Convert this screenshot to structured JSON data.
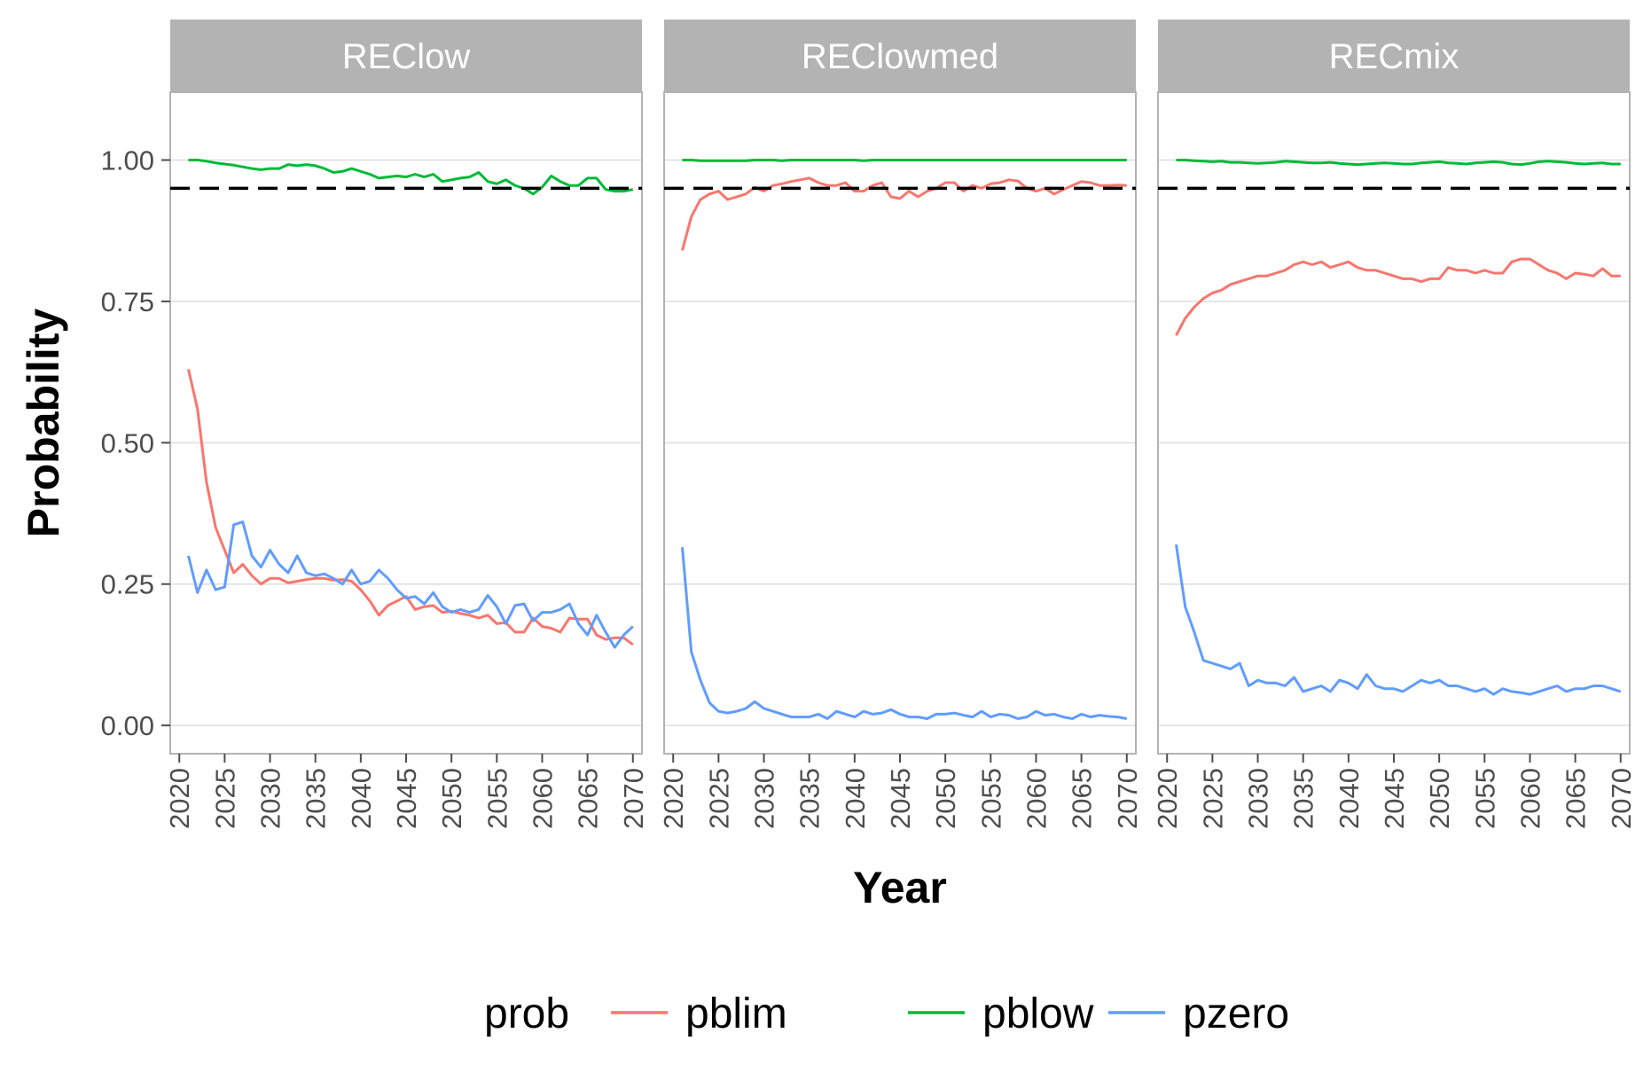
{
  "chart_data": {
    "type": "line",
    "facets": [
      "REClow",
      "REClowmed",
      "RECmix"
    ],
    "xlabel": "Year",
    "ylabel": "Probability",
    "xlim": [
      2019,
      2071
    ],
    "ylim": [
      -0.05,
      1.12
    ],
    "x_ticks": [
      2020,
      2025,
      2030,
      2035,
      2040,
      2045,
      2050,
      2055,
      2060,
      2065,
      2070
    ],
    "y_ticks": [
      0.0,
      0.25,
      0.5,
      0.75,
      1.0
    ],
    "y_tick_labels": [
      "0.00",
      "0.25",
      "0.50",
      "0.75",
      "1.00"
    ],
    "reference_line": {
      "y": 0.95,
      "style": "dashed",
      "color": "#000000"
    },
    "legend": {
      "title": "prob",
      "position": "bottom"
    },
    "grid": true,
    "x": [
      2021,
      2022,
      2023,
      2024,
      2025,
      2026,
      2027,
      2028,
      2029,
      2030,
      2031,
      2032,
      2033,
      2034,
      2035,
      2036,
      2037,
      2038,
      2039,
      2040,
      2041,
      2042,
      2043,
      2044,
      2045,
      2046,
      2047,
      2048,
      2049,
      2050,
      2051,
      2052,
      2053,
      2054,
      2055,
      2056,
      2057,
      2058,
      2059,
      2060,
      2061,
      2062,
      2063,
      2064,
      2065,
      2066,
      2067,
      2068,
      2069,
      2070
    ],
    "series_meta": [
      {
        "name": "pblim",
        "color": "#F8766D"
      },
      {
        "name": "pblow",
        "color": "#00BA38"
      },
      {
        "name": "pzero",
        "color": "#619CFF"
      }
    ],
    "panels": [
      {
        "facet": "REClow",
        "series": [
          {
            "name": "pblim",
            "values": [
              0.63,
              0.56,
              0.43,
              0.35,
              0.31,
              0.27,
              0.285,
              0.265,
              0.25,
              0.26,
              0.26,
              0.252,
              0.255,
              0.258,
              0.26,
              0.26,
              0.257,
              0.258,
              0.255,
              0.24,
              0.22,
              0.195,
              0.212,
              0.22,
              0.228,
              0.205,
              0.21,
              0.212,
              0.2,
              0.202,
              0.198,
              0.195,
              0.19,
              0.195,
              0.18,
              0.182,
              0.165,
              0.165,
              0.19,
              0.175,
              0.172,
              0.165,
              0.19,
              0.188,
              0.188,
              0.16,
              0.152,
              0.155,
              0.155,
              0.143
            ]
          },
          {
            "name": "pblow",
            "values": [
              1.0,
              1.0,
              0.998,
              0.995,
              0.993,
              0.991,
              0.988,
              0.985,
              0.983,
              0.985,
              0.985,
              0.992,
              0.99,
              0.992,
              0.99,
              0.985,
              0.978,
              0.98,
              0.985,
              0.98,
              0.975,
              0.968,
              0.97,
              0.972,
              0.97,
              0.975,
              0.97,
              0.975,
              0.962,
              0.965,
              0.968,
              0.97,
              0.978,
              0.962,
              0.958,
              0.965,
              0.955,
              0.95,
              0.94,
              0.952,
              0.972,
              0.962,
              0.955,
              0.955,
              0.968,
              0.968,
              0.948,
              0.945,
              0.945,
              0.948
            ]
          },
          {
            "name": "pzero",
            "values": [
              0.3,
              0.235,
              0.275,
              0.24,
              0.245,
              0.355,
              0.36,
              0.3,
              0.28,
              0.31,
              0.285,
              0.27,
              0.3,
              0.27,
              0.265,
              0.268,
              0.26,
              0.25,
              0.275,
              0.25,
              0.255,
              0.275,
              0.26,
              0.24,
              0.225,
              0.228,
              0.215,
              0.235,
              0.21,
              0.2,
              0.205,
              0.2,
              0.205,
              0.23,
              0.21,
              0.18,
              0.212,
              0.215,
              0.185,
              0.2,
              0.2,
              0.205,
              0.215,
              0.18,
              0.16,
              0.195,
              0.165,
              0.138,
              0.16,
              0.175
            ]
          }
        ]
      },
      {
        "facet": "REClowmed",
        "series": [
          {
            "name": "pblim",
            "values": [
              0.84,
              0.9,
              0.93,
              0.94,
              0.945,
              0.93,
              0.935,
              0.94,
              0.952,
              0.945,
              0.955,
              0.958,
              0.962,
              0.965,
              0.968,
              0.96,
              0.955,
              0.955,
              0.96,
              0.945,
              0.945,
              0.955,
              0.96,
              0.935,
              0.932,
              0.945,
              0.935,
              0.945,
              0.95,
              0.96,
              0.96,
              0.945,
              0.955,
              0.95,
              0.958,
              0.96,
              0.965,
              0.963,
              0.95,
              0.945,
              0.95,
              0.94,
              0.948,
              0.955,
              0.962,
              0.96,
              0.955,
              0.955,
              0.956,
              0.955
            ]
          },
          {
            "name": "pblow",
            "values": [
              1.0,
              1.0,
              0.999,
              0.999,
              0.999,
              0.999,
              0.999,
              0.999,
              1.0,
              1.0,
              1.0,
              0.999,
              1.0,
              1.0,
              1.0,
              1.0,
              1.0,
              1.0,
              1.0,
              1.0,
              0.999,
              1.0,
              1.0,
              1.0,
              1.0,
              1.0,
              1.0,
              1.0,
              1.0,
              1.0,
              1.0,
              1.0,
              1.0,
              1.0,
              1.0,
              1.0,
              1.0,
              1.0,
              1.0,
              1.0,
              1.0,
              1.0,
              1.0,
              1.0,
              1.0,
              1.0,
              1.0,
              1.0,
              1.0,
              1.0
            ]
          },
          {
            "name": "pzero",
            "values": [
              0.315,
              0.13,
              0.08,
              0.04,
              0.025,
              0.022,
              0.025,
              0.03,
              0.042,
              0.03,
              0.025,
              0.02,
              0.015,
              0.015,
              0.015,
              0.02,
              0.012,
              0.025,
              0.02,
              0.015,
              0.025,
              0.02,
              0.022,
              0.028,
              0.02,
              0.015,
              0.015,
              0.012,
              0.02,
              0.02,
              0.022,
              0.018,
              0.015,
              0.025,
              0.015,
              0.02,
              0.018,
              0.012,
              0.015,
              0.025,
              0.018,
              0.02,
              0.015,
              0.012,
              0.02,
              0.015,
              0.018,
              0.016,
              0.015,
              0.012
            ]
          }
        ]
      },
      {
        "facet": "RECmix",
        "series": [
          {
            "name": "pblim",
            "values": [
              0.69,
              0.72,
              0.74,
              0.755,
              0.765,
              0.77,
              0.78,
              0.785,
              0.79,
              0.795,
              0.795,
              0.8,
              0.805,
              0.815,
              0.82,
              0.815,
              0.82,
              0.81,
              0.815,
              0.82,
              0.81,
              0.805,
              0.805,
              0.8,
              0.795,
              0.79,
              0.79,
              0.785,
              0.79,
              0.79,
              0.81,
              0.805,
              0.805,
              0.8,
              0.805,
              0.8,
              0.8,
              0.82,
              0.825,
              0.825,
              0.815,
              0.805,
              0.8,
              0.79,
              0.8,
              0.798,
              0.795,
              0.808,
              0.795,
              0.795
            ]
          },
          {
            "name": "pblow",
            "values": [
              1.0,
              1.0,
              0.999,
              0.998,
              0.997,
              0.998,
              0.996,
              0.996,
              0.995,
              0.994,
              0.995,
              0.996,
              0.998,
              0.997,
              0.996,
              0.995,
              0.995,
              0.996,
              0.994,
              0.993,
              0.992,
              0.993,
              0.994,
              0.995,
              0.994,
              0.993,
              0.993,
              0.995,
              0.996,
              0.997,
              0.995,
              0.994,
              0.993,
              0.995,
              0.996,
              0.997,
              0.996,
              0.993,
              0.992,
              0.994,
              0.997,
              0.998,
              0.997,
              0.996,
              0.994,
              0.993,
              0.994,
              0.995,
              0.993,
              0.993
            ]
          },
          {
            "name": "pzero",
            "values": [
              0.32,
              0.21,
              0.165,
              0.115,
              0.11,
              0.105,
              0.1,
              0.11,
              0.07,
              0.08,
              0.075,
              0.075,
              0.07,
              0.085,
              0.06,
              0.065,
              0.07,
              0.06,
              0.08,
              0.075,
              0.065,
              0.09,
              0.07,
              0.065,
              0.065,
              0.06,
              0.07,
              0.08,
              0.075,
              0.08,
              0.07,
              0.07,
              0.065,
              0.06,
              0.065,
              0.055,
              0.065,
              0.06,
              0.058,
              0.055,
              0.06,
              0.065,
              0.07,
              0.06,
              0.065,
              0.065,
              0.07,
              0.07,
              0.065,
              0.06
            ]
          }
        ]
      }
    ]
  }
}
